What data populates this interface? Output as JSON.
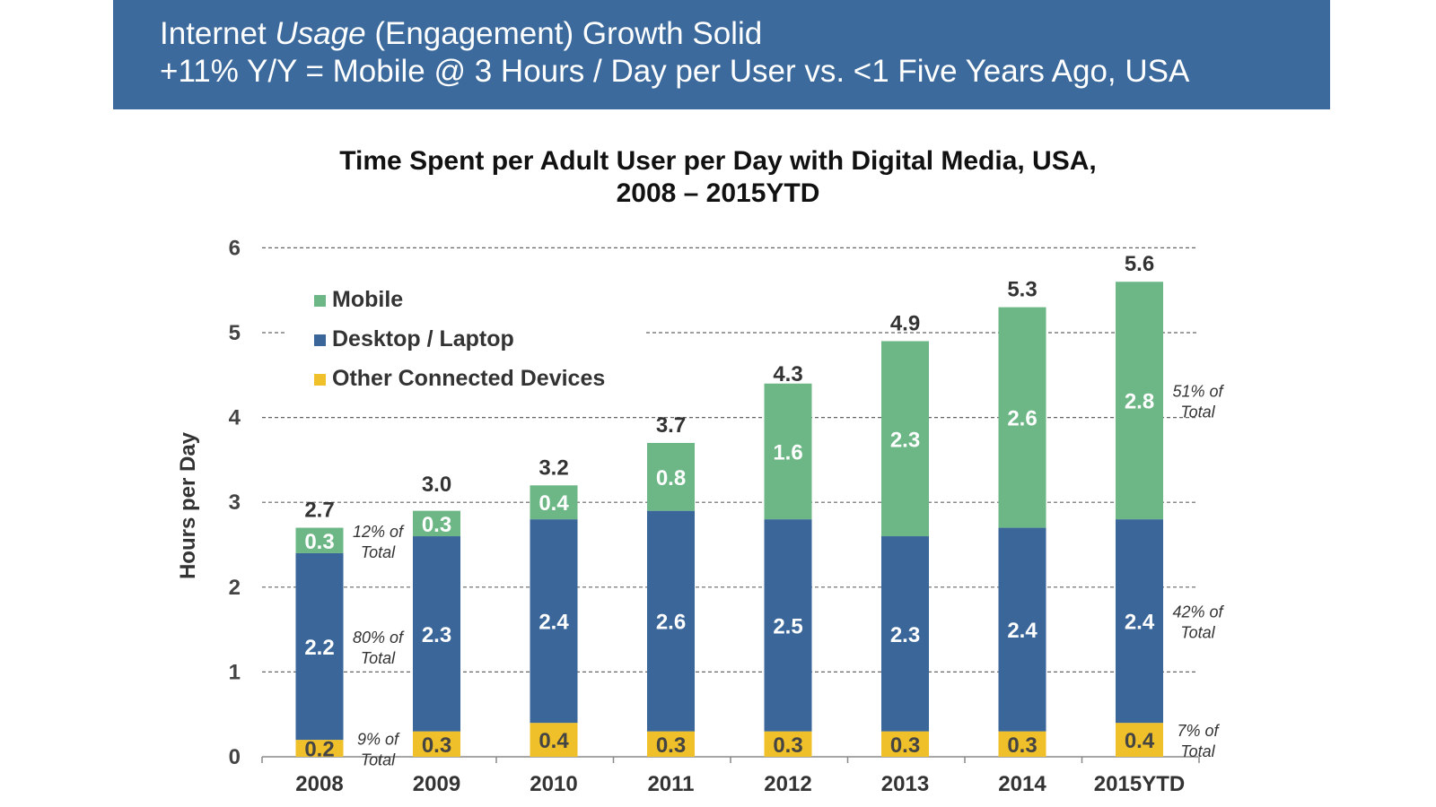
{
  "header": {
    "line1_pre": "Internet ",
    "line1_italic": "Usage",
    "line1_post": " (Engagement) Growth Solid",
    "line2": "+11% Y/Y = Mobile @ 3 Hours / Day per User vs. <1  Five Years Ago, USA"
  },
  "colors": {
    "header_bg": "#3c6a9c",
    "mobile": "#6db786",
    "desktop": "#3a6699",
    "other": "#efc02a"
  },
  "chart_data": {
    "type": "bar",
    "stacked": true,
    "title_line1": "Time Spent per Adult User per Day with Digital Media, USA,",
    "title_line2": "2008 – 2015YTD",
    "ylabel": "Hours per Day",
    "xlabel": "",
    "ylim": [
      0,
      6
    ],
    "yticks": [
      "0",
      "1",
      "2",
      "3",
      "4",
      "5",
      "6"
    ],
    "grid": true,
    "legend_position": "top-left",
    "categories": [
      "2008",
      "2009",
      "2010",
      "2011",
      "2012",
      "2013",
      "2014",
      "2015YTD"
    ],
    "series": [
      {
        "name": "Other Connected Devices",
        "key": "other",
        "values": [
          0.2,
          0.3,
          0.4,
          0.3,
          0.3,
          0.3,
          0.3,
          0.4
        ],
        "labels": [
          "0.2",
          "0.3",
          "0.4",
          "0.3",
          "0.3",
          "0.3",
          "0.3",
          "0.4"
        ]
      },
      {
        "name": "Desktop / Laptop",
        "key": "desktop",
        "values": [
          2.2,
          2.3,
          2.4,
          2.6,
          2.5,
          2.3,
          2.4,
          2.4
        ],
        "labels": [
          "2.2",
          "2.3",
          "2.4",
          "2.6",
          "2.5",
          "2.3",
          "2.4",
          "2.4"
        ]
      },
      {
        "name": "Mobile",
        "key": "mobile",
        "values": [
          0.3,
          0.3,
          0.4,
          0.8,
          1.6,
          2.3,
          2.6,
          2.8
        ],
        "labels": [
          "0.3",
          "0.3",
          "0.4",
          "0.8",
          "1.6",
          "2.3",
          "2.6",
          "2.8"
        ]
      }
    ],
    "totals": [
      2.7,
      3.0,
      3.2,
      3.7,
      4.3,
      4.9,
      5.3,
      5.6
    ],
    "total_labels": [
      "2.7",
      "3.0",
      "3.2",
      "3.7",
      "4.3",
      "4.9",
      "5.3",
      "5.6"
    ],
    "legend_order": [
      "Mobile",
      "Desktop / Laptop",
      "Other Connected Devices"
    ],
    "annotations": [
      {
        "category": "2008",
        "series": "Mobile",
        "line1": "12% of",
        "line2": "Total"
      },
      {
        "category": "2008",
        "series": "Desktop / Laptop",
        "line1": "80% of",
        "line2": "Total"
      },
      {
        "category": "2008",
        "series": "Other Connected Devices",
        "line1": "9% of",
        "line2": "Total"
      },
      {
        "category": "2015YTD",
        "series": "Mobile",
        "line1": "51% of",
        "line2": "Total"
      },
      {
        "category": "2015YTD",
        "series": "Desktop / Laptop",
        "line1": "42% of",
        "line2": "Total"
      },
      {
        "category": "2015YTD",
        "series": "Other Connected Devices",
        "line1": "7% of",
        "line2": "Total"
      }
    ]
  }
}
